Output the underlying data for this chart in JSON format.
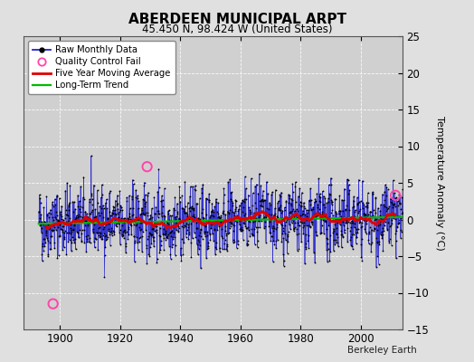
{
  "title": "ABERDEEN MUNICIPAL ARPT",
  "subtitle": "45.450 N, 98.424 W (United States)",
  "ylabel": "Temperature Anomaly (°C)",
  "credit": "Berkeley Earth",
  "xlim": [
    1888,
    2014
  ],
  "ylim": [
    -15,
    25
  ],
  "yticks": [
    -15,
    -10,
    -5,
    0,
    5,
    10,
    15,
    20,
    25
  ],
  "xticks": [
    1900,
    1920,
    1940,
    1960,
    1980,
    2000
  ],
  "bg_color": "#e0e0e0",
  "plot_bg_color": "#d0d0d0",
  "raw_line_color": "#2222cc",
  "raw_dot_color": "#000000",
  "moving_avg_color": "#dd0000",
  "trend_color": "#00bb00",
  "qc_fail_color": "#ff44aa",
  "seed": 42,
  "start_year": 1893,
  "end_year": 2013,
  "noise_std": 3.2,
  "trend_slope": 0.004,
  "trend_intercept": -0.5,
  "qc_fail_points": [
    [
      1897.75,
      -11.5
    ],
    [
      1929.0,
      7.2
    ],
    [
      2011.5,
      3.3
    ]
  ],
  "ma_window": 60
}
